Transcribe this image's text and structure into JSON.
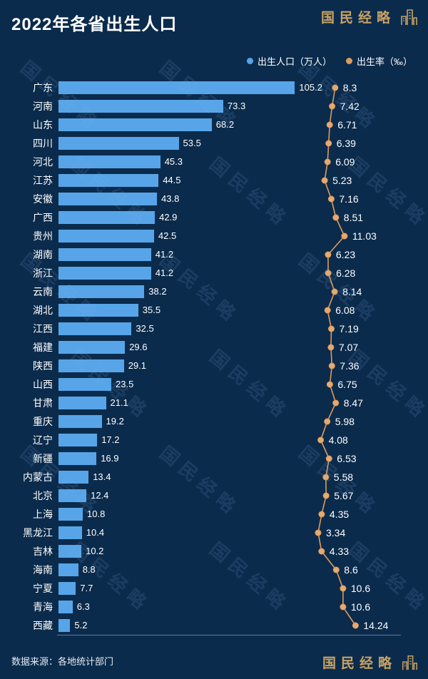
{
  "header": {
    "title": "2022年各省出生人口",
    "brand": "国民经略"
  },
  "legend": {
    "population_label": "出生人口（万人）",
    "rate_label": "出生率（‰）"
  },
  "footer": {
    "source": "数据来源：各地统计部门",
    "brand": "国民经略"
  },
  "watermark": "国民经略",
  "colors": {
    "background": "#0b2b4c",
    "bar": "#57a5e8",
    "rate_line": "#dd9b5c",
    "rate_dot": "#e6aa6e",
    "brand_gold": "#c8a264",
    "text": "#ffffff"
  },
  "chart_data": {
    "type": "bar",
    "title": "2022年各省出生人口",
    "orientation": "horizontal",
    "categories": [
      "广东",
      "河南",
      "山东",
      "四川",
      "河北",
      "江苏",
      "安徽",
      "广西",
      "贵州",
      "湖南",
      "浙江",
      "云南",
      "湖北",
      "江西",
      "福建",
      "陕西",
      "山西",
      "甘肃",
      "重庆",
      "辽宁",
      "新疆",
      "内蒙古",
      "北京",
      "上海",
      "黑龙江",
      "吉林",
      "海南",
      "宁夏",
      "青海",
      "西藏"
    ],
    "series": [
      {
        "name": "出生人口（万人）",
        "type": "bar",
        "values": [
          105.2,
          73.3,
          68.2,
          53.5,
          45.3,
          44.5,
          43.8,
          42.9,
          42.5,
          41.2,
          41.2,
          38.2,
          35.5,
          32.5,
          29.6,
          29.1,
          23.5,
          21.1,
          19.2,
          17.2,
          16.9,
          13.4,
          12.4,
          10.8,
          10.4,
          10.2,
          8.8,
          7.7,
          6.3,
          5.2
        ]
      },
      {
        "name": "出生率（‰）",
        "type": "line",
        "values": [
          8.3,
          7.42,
          6.71,
          6.39,
          6.09,
          5.23,
          7.16,
          8.51,
          11.03,
          6.23,
          6.28,
          8.14,
          6.08,
          7.19,
          7.07,
          7.36,
          6.75,
          8.47,
          5.98,
          4.08,
          6.53,
          5.58,
          5.67,
          4.35,
          3.34,
          4.33,
          8.6,
          10.6,
          10.6,
          14.24
        ]
      }
    ],
    "xlim_population": [
      0,
      110
    ],
    "xlim_rate": [
      0,
      15
    ],
    "grid": false,
    "legend_position": "top-right",
    "source_note": "数据来源：各地统计部门"
  }
}
